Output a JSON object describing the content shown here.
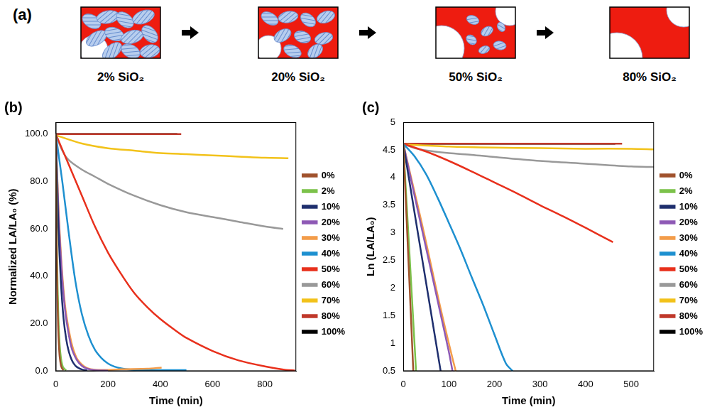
{
  "diagram": {
    "label": "(a)",
    "stages": [
      "2% SiO₂",
      "20% SiO₂",
      "50% SiO₂",
      "80% SiO₂"
    ]
  },
  "chart_data": [
    {
      "type": "line",
      "title": "(b)",
      "x_label": "Time (min)",
      "y_label": "Normalized LA/LA₀ (%)",
      "xlim": [
        0,
        920
      ],
      "xticks": [
        0,
        200,
        400,
        600,
        800
      ],
      "ylim": [
        0,
        105
      ],
      "yticks": [
        {
          "value": 0,
          "label": "0.0"
        },
        {
          "value": 20,
          "label": "20.0"
        },
        {
          "value": 40,
          "label": "40.0"
        },
        {
          "value": 60,
          "label": "60.0"
        },
        {
          "value": 80,
          "label": "80.0"
        },
        {
          "value": 100,
          "label": "100.0"
        }
      ],
      "grid": false,
      "legend": "right",
      "series": [
        {
          "name": "0%",
          "color": "#a0522d",
          "x": [
            0,
            3,
            6,
            9,
            12,
            15,
            20,
            25,
            30
          ],
          "values": [
            100,
            57,
            33,
            19,
            11,
            6.1,
            2.4,
            1.0,
            0.4
          ]
        },
        {
          "name": "2%",
          "color": "#7cc24b",
          "x": [
            0,
            5,
            10,
            15,
            20,
            25,
            30,
            40
          ],
          "values": [
            100,
            48,
            23,
            11,
            5.4,
            2.6,
            1.3,
            0.3
          ]
        },
        {
          "name": "10%",
          "color": "#1f2f6e",
          "x": [
            0,
            10,
            20,
            30,
            40,
            50,
            60,
            70,
            80,
            100,
            120
          ],
          "values": [
            100,
            61,
            37,
            22,
            13.5,
            8.2,
            5,
            3,
            1.8,
            0.7,
            0.2
          ]
        },
        {
          "name": "20%",
          "color": "#8e5ab5",
          "x": [
            0,
            10,
            20,
            30,
            40,
            60,
            80,
            100,
            120,
            150,
            200
          ],
          "values": [
            100,
            68,
            47,
            32,
            22,
            10,
            4.8,
            2.2,
            1,
            0.4,
            0.2
          ]
        },
        {
          "name": "30%",
          "color": "#f39c4a",
          "x": [
            0,
            10,
            20,
            30,
            40,
            60,
            80,
            100,
            120,
            150,
            200,
            250,
            350,
            405
          ],
          "values": [
            100,
            70,
            49,
            34,
            24,
            12,
            5.5,
            2.8,
            1.3,
            0.6,
            0.5,
            0.8,
            1.0,
            1.5
          ]
        },
        {
          "name": "40%",
          "color": "#1e90d0",
          "x": [
            0,
            25,
            50,
            75,
            100,
            125,
            150,
            175,
            200,
            225,
            250,
            300,
            400,
            500
          ],
          "values": [
            100,
            80,
            58,
            38,
            24,
            15,
            9,
            5.5,
            3.2,
            1.9,
            1.2,
            0.5,
            0.4,
            0.4
          ]
        },
        {
          "name": "50%",
          "color": "#e8301c",
          "x": [
            0,
            50,
            100,
            150,
            200,
            250,
            300,
            350,
            400,
            460,
            500,
            600,
            700,
            800,
            880,
            915
          ],
          "values": [
            100,
            87,
            74,
            61,
            50,
            41,
            33,
            27,
            22,
            17,
            14,
            8.5,
            4.5,
            2,
            0.5,
            0.3
          ]
        },
        {
          "name": "60%",
          "color": "#999999",
          "x": [
            0,
            25,
            50,
            100,
            150,
            200,
            300,
            400,
            500,
            600,
            700,
            800,
            870
          ],
          "values": [
            100,
            93,
            89,
            85,
            82,
            79,
            74,
            70,
            67,
            65,
            63,
            61,
            60
          ]
        },
        {
          "name": "70%",
          "color": "#f2c21a",
          "x": [
            0,
            100,
            200,
            300,
            400,
            500,
            600,
            700,
            800,
            890
          ],
          "values": [
            99.5,
            96,
            94,
            93,
            92,
            91.5,
            91,
            90.5,
            90,
            89.8
          ]
        },
        {
          "name": "80%",
          "color": "#c0392b",
          "x": [
            0,
            480
          ],
          "values": [
            100,
            100
          ]
        },
        {
          "name": "100%",
          "color": "#000000",
          "x": [
            0,
            465
          ],
          "values": [
            100,
            100
          ]
        }
      ]
    },
    {
      "type": "line",
      "title": "(c)",
      "x_label": "Time (min)",
      "y_label": "Ln (LA/LA₀)",
      "xlim": [
        0,
        550
      ],
      "xticks": [
        0,
        100,
        200,
        300,
        400,
        500
      ],
      "ylim": [
        0.5,
        5
      ],
      "yticks": [
        0.5,
        1,
        1.5,
        2,
        2.5,
        3,
        3.5,
        4,
        4.5,
        5
      ],
      "grid": false,
      "legend": "right",
      "series": [
        {
          "name": "0%",
          "color": "#a0522d",
          "x": [
            0,
            5,
            10,
            15,
            22
          ],
          "values": [
            4.61,
            3.68,
            2.75,
            1.82,
            0.5
          ]
        },
        {
          "name": "2%",
          "color": "#7cc24b",
          "x": [
            0,
            10,
            20,
            28
          ],
          "values": [
            4.61,
            3.15,
            1.69,
            0.5
          ]
        },
        {
          "name": "10%",
          "color": "#1f2f6e",
          "x": [
            0,
            20,
            40,
            60,
            82
          ],
          "values": [
            4.61,
            3.6,
            2.6,
            1.6,
            0.5
          ]
        },
        {
          "name": "20%",
          "color": "#8e5ab5",
          "x": [
            0,
            20,
            40,
            60,
            80,
            100,
            108
          ],
          "values": [
            4.61,
            3.85,
            3.1,
            2.35,
            1.6,
            0.85,
            0.5
          ]
        },
        {
          "name": "30%",
          "color": "#f39c4a",
          "x": [
            0,
            20,
            40,
            60,
            80,
            100,
            115
          ],
          "values": [
            4.61,
            3.9,
            3.2,
            2.45,
            1.7,
            1.0,
            0.5
          ]
        },
        {
          "name": "40%",
          "color": "#1e90d0",
          "x": [
            0,
            25,
            50,
            75,
            100,
            125,
            150,
            175,
            200,
            225,
            240
          ],
          "values": [
            4.61,
            4.38,
            4.06,
            3.64,
            3.18,
            2.71,
            2.2,
            1.7,
            1.16,
            0.64,
            0.5
          ]
        },
        {
          "name": "50%",
          "color": "#e8301c",
          "x": [
            0,
            50,
            100,
            150,
            200,
            250,
            300,
            350,
            400,
            460
          ],
          "values": [
            4.61,
            4.47,
            4.3,
            4.11,
            3.91,
            3.71,
            3.5,
            3.3,
            3.09,
            2.83
          ]
        },
        {
          "name": "60%",
          "color": "#999999",
          "x": [
            0,
            25,
            50,
            100,
            150,
            200,
            300,
            400,
            500,
            550
          ],
          "values": [
            4.61,
            4.53,
            4.49,
            4.44,
            4.41,
            4.37,
            4.3,
            4.25,
            4.2,
            4.19
          ]
        },
        {
          "name": "70%",
          "color": "#f2c21a",
          "x": [
            0,
            100,
            200,
            300,
            400,
            500,
            550
          ],
          "values": [
            4.6,
            4.56,
            4.54,
            4.53,
            4.52,
            4.52,
            4.51
          ]
        },
        {
          "name": "80%",
          "color": "#c0392b",
          "x": [
            0,
            480
          ],
          "values": [
            4.61,
            4.61
          ]
        },
        {
          "name": "100%",
          "color": "#000000",
          "x": [
            0,
            465
          ],
          "values": [
            4.61,
            4.61
          ]
        }
      ]
    }
  ]
}
